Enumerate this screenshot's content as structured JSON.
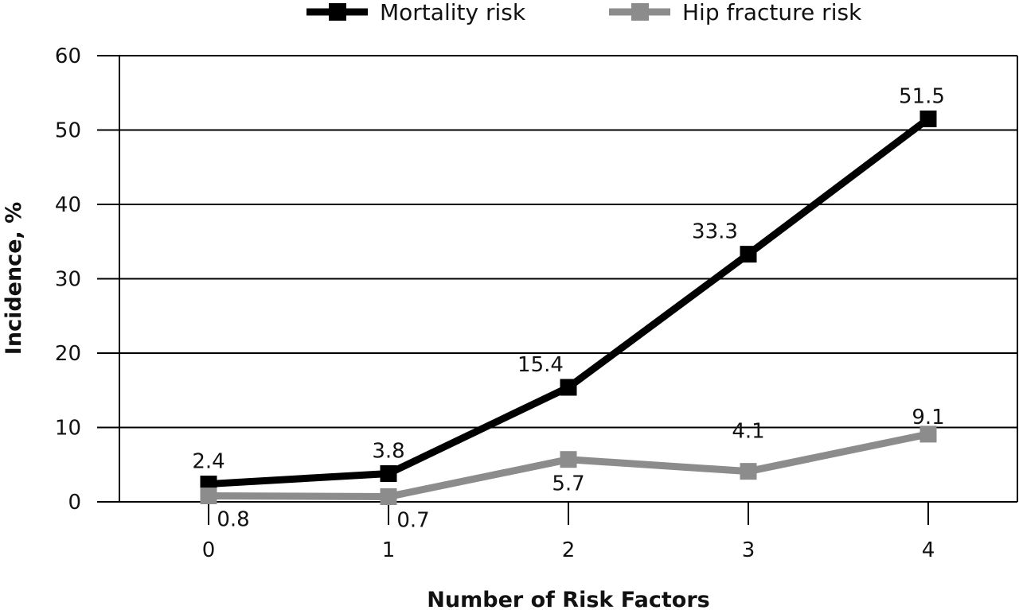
{
  "chart_data": {
    "type": "line",
    "x": [
      0,
      1,
      2,
      3,
      4
    ],
    "xtick_labels": [
      "0",
      "1",
      "2",
      "3",
      "4"
    ],
    "xlabel": "Number of Risk Factors",
    "ylabel": "Incidence, %",
    "ylim": [
      0,
      60
    ],
    "yticks": [
      0,
      10,
      20,
      30,
      40,
      50,
      60
    ],
    "grid": "horizontal",
    "legend_position": "top",
    "series": [
      {
        "name": "Mortality risk",
        "color": "#000000",
        "values": [
          2.4,
          3.8,
          15.4,
          33.3,
          51.5
        ],
        "labels": [
          "2.4",
          "3.8",
          "15.4",
          "33.3",
          "51.5"
        ]
      },
      {
        "name": "Hip fracture risk",
        "color": "#8c8c8c",
        "values": [
          0.8,
          0.7,
          5.7,
          4.1,
          9.1
        ],
        "labels": [
          "0.8",
          "0.7",
          "5.7",
          "4.1",
          "9.1"
        ]
      }
    ]
  }
}
